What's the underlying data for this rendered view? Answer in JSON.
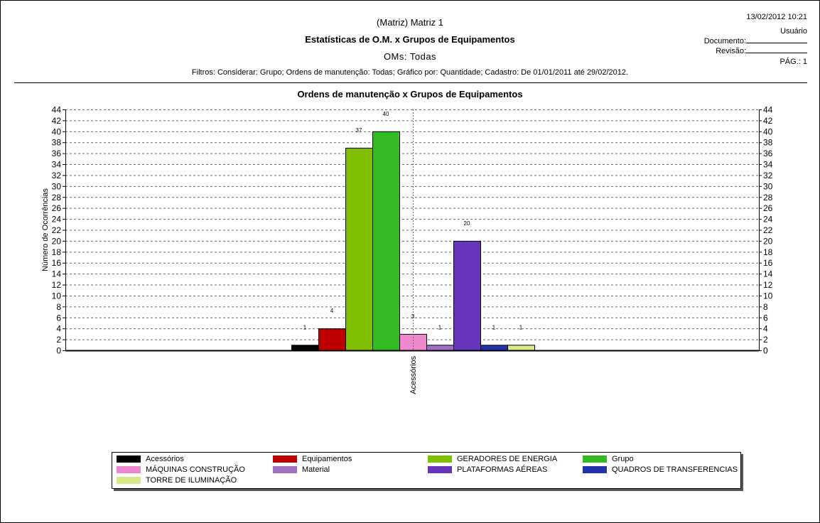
{
  "header": {
    "subtitle": "(Matriz) Matriz 1",
    "title": "Estatísticas de O.M. x Grupos de Equipamentos",
    "oms": "OMs: Todas",
    "filters": "Filtros: Considerar: Grupo; Ordens de manutenção: Todas; Gráfico por: Quantidade; Cadastro: De 01/01/2011 até 29/02/2012.",
    "datetime": "13/02/2012 10:21",
    "user_label": "Usuário",
    "document_label": "Documento:",
    "revision_label": "Revisão:",
    "page_label": "PÁG.: 1"
  },
  "chart_data": {
    "type": "bar",
    "title": "Ordens de manutenção x Grupos de Equipamentos",
    "ylabel": "Número de Ocorrências",
    "xlabel": "",
    "categories": [
      "Acessórios"
    ],
    "ylim": [
      0,
      44
    ],
    "yticks": [
      0,
      2,
      4,
      6,
      8,
      10,
      12,
      14,
      16,
      18,
      20,
      22,
      24,
      26,
      28,
      30,
      32,
      34,
      36,
      38,
      40,
      42,
      44
    ],
    "grid": true,
    "legend_position": "bottom",
    "series": [
      {
        "name": "Acessórios",
        "values": [
          1
        ],
        "color": "#000000"
      },
      {
        "name": "Equipamentos",
        "values": [
          4
        ],
        "color": "#c00000"
      },
      {
        "name": "GERADORES DE ENERGIA",
        "values": [
          37
        ],
        "color": "#7fbf00"
      },
      {
        "name": "Grupo",
        "values": [
          40
        ],
        "color": "#33bb22"
      },
      {
        "name": "MÁQUINAS CONSTRUÇÃO",
        "values": [
          3
        ],
        "color": "#ee88cc"
      },
      {
        "name": "Material",
        "values": [
          1
        ],
        "color": "#a070c0"
      },
      {
        "name": "PLATAFORMAS AÉREAS",
        "values": [
          20
        ],
        "color": "#6633bb"
      },
      {
        "name": "QUADROS DE TRANSFERENCIAS",
        "values": [
          1
        ],
        "color": "#2233aa"
      },
      {
        "name": "TORRE DE ILUMINAÇÃO",
        "values": [
          1
        ],
        "color": "#d8e888"
      }
    ]
  }
}
